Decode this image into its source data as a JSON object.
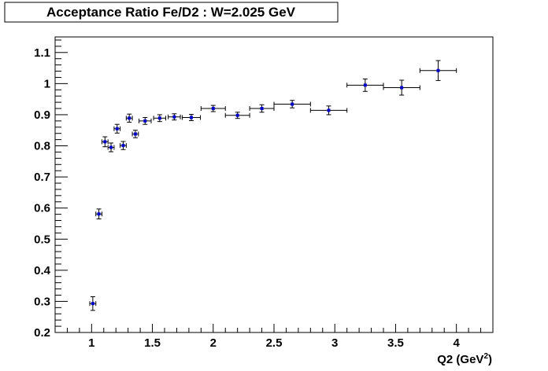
{
  "chart_data": {
    "type": "scatter",
    "title": "Acceptance Ratio Fe/D2 : W=2.025 GeV",
    "xlabel": "Q2 (GeV",
    "xlabel_sup": "2",
    "xlabel_end": ")",
    "ylabel": "",
    "xlim": [
      0.7,
      4.3
    ],
    "ylim": [
      0.2,
      1.15
    ],
    "xticks": [
      {
        "v": 1,
        "label": "1"
      },
      {
        "v": 1.5,
        "label": "1.5"
      },
      {
        "v": 2,
        "label": "2"
      },
      {
        "v": 2.5,
        "label": "2.5"
      },
      {
        "v": 3,
        "label": "3"
      },
      {
        "v": 3.5,
        "label": "3.5"
      },
      {
        "v": 4,
        "label": "4"
      }
    ],
    "yticks": [
      {
        "v": 0.2,
        "label": "0.2"
      },
      {
        "v": 0.3,
        "label": "0.3"
      },
      {
        "v": 0.4,
        "label": "0.4"
      },
      {
        "v": 0.5,
        "label": "0.5"
      },
      {
        "v": 0.6,
        "label": "0.6"
      },
      {
        "v": 0.7,
        "label": "0.7"
      },
      {
        "v": 0.8,
        "label": "0.8"
      },
      {
        "v": 0.9,
        "label": "0.9"
      },
      {
        "v": 1.0,
        "label": "1"
      },
      {
        "v": 1.1,
        "label": "1.1"
      }
    ],
    "grid": false,
    "legend": "none",
    "marker_color": "#0000cc",
    "points": [
      {
        "x": 1.01,
        "y": 0.293,
        "xerr": 0.025,
        "yerr": 0.022
      },
      {
        "x": 1.06,
        "y": 0.581,
        "xerr": 0.025,
        "yerr": 0.016
      },
      {
        "x": 1.11,
        "y": 0.813,
        "xerr": 0.025,
        "yerr": 0.016
      },
      {
        "x": 1.16,
        "y": 0.795,
        "xerr": 0.025,
        "yerr": 0.014
      },
      {
        "x": 1.21,
        "y": 0.855,
        "xerr": 0.025,
        "yerr": 0.014
      },
      {
        "x": 1.26,
        "y": 0.801,
        "xerr": 0.025,
        "yerr": 0.013
      },
      {
        "x": 1.31,
        "y": 0.889,
        "xerr": 0.025,
        "yerr": 0.013
      },
      {
        "x": 1.36,
        "y": 0.838,
        "xerr": 0.025,
        "yerr": 0.012
      },
      {
        "x": 1.44,
        "y": 0.88,
        "xerr": 0.05,
        "yerr": 0.011
      },
      {
        "x": 1.56,
        "y": 0.889,
        "xerr": 0.05,
        "yerr": 0.011
      },
      {
        "x": 1.68,
        "y": 0.893,
        "xerr": 0.05,
        "yerr": 0.01
      },
      {
        "x": 1.82,
        "y": 0.891,
        "xerr": 0.075,
        "yerr": 0.01
      },
      {
        "x": 2.0,
        "y": 0.92,
        "xerr": 0.1,
        "yerr": 0.01
      },
      {
        "x": 2.2,
        "y": 0.898,
        "xerr": 0.1,
        "yerr": 0.01
      },
      {
        "x": 2.4,
        "y": 0.92,
        "xerr": 0.1,
        "yerr": 0.012
      },
      {
        "x": 2.65,
        "y": 0.934,
        "xerr": 0.15,
        "yerr": 0.012
      },
      {
        "x": 2.95,
        "y": 0.914,
        "xerr": 0.15,
        "yerr": 0.014
      },
      {
        "x": 3.25,
        "y": 0.995,
        "xerr": 0.15,
        "yerr": 0.02
      },
      {
        "x": 3.55,
        "y": 0.987,
        "xerr": 0.15,
        "yerr": 0.024
      },
      {
        "x": 3.85,
        "y": 1.042,
        "xerr": 0.15,
        "yerr": 0.032
      }
    ]
  }
}
